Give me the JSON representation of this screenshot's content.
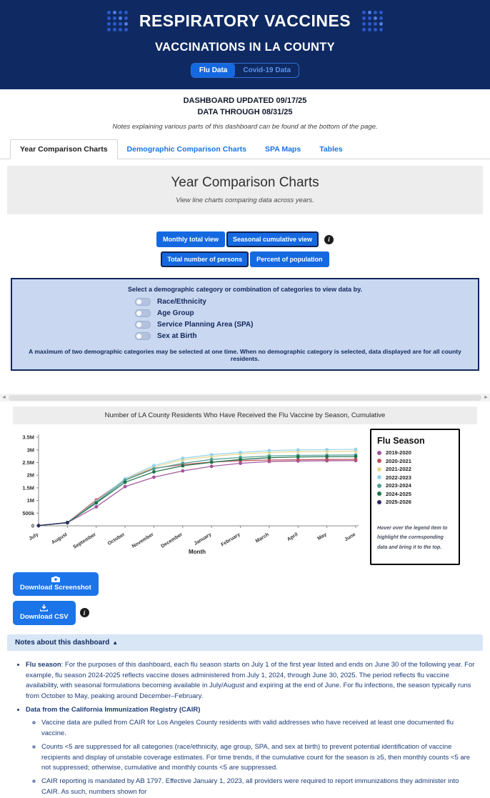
{
  "header": {
    "title": "RESPIRATORY VACCINES",
    "subtitle": "VACCINATIONS IN LA COUNTY",
    "toggle_flu": "Flu Data",
    "toggle_covid": "Covid-19 Data"
  },
  "meta": {
    "updated": "DASHBOARD UPDATED 09/17/25",
    "through": "DATA THROUGH 08/31/25",
    "note": "Notes explaining various parts of this dashboard can be found at the bottom of the page."
  },
  "tabs": [
    {
      "label": "Year Comparison Charts",
      "active": true
    },
    {
      "label": "Demographic Comparison Charts",
      "active": false
    },
    {
      "label": "SPA Maps",
      "active": false
    },
    {
      "label": "Tables",
      "active": false
    }
  ],
  "section": {
    "title": "Year Comparison Charts",
    "subtitle": "View line charts comparing data across years."
  },
  "view_toggles": {
    "row1": [
      {
        "label": "Monthly total view",
        "selected": false
      },
      {
        "label": "Seasonal cumulative view",
        "selected": true
      }
    ],
    "row2": [
      {
        "label": "Total number of persons",
        "selected": true
      },
      {
        "label": "Percent of population",
        "selected": false
      }
    ],
    "info_glyph": "i"
  },
  "demographic_panel": {
    "title": "Select a demographic category or combination of categories to view data by.",
    "options": [
      "Race/Ethnicity",
      "Age Group",
      "Service Planning Area (SPA)",
      "Sex at Birth"
    ],
    "note": "A maximum of two demographic categories may be selected at one time. When no demographic category is selected, data displayed are for all county residents."
  },
  "chart_data": {
    "type": "line",
    "title": "Number of LA County Residents Who Have Received the Flu Vaccine by Season, Cumulative",
    "xlabel": "Month",
    "x": [
      "July",
      "August",
      "September",
      "October",
      "November",
      "December",
      "January",
      "February",
      "March",
      "April",
      "May",
      "June"
    ],
    "ylim": [
      0,
      3500000
    ],
    "yticks": [
      "0",
      "500k",
      "1M",
      "1.5M",
      "2M",
      "2.5M",
      "3M",
      "3.5M"
    ],
    "grid": false,
    "legend_position": "right",
    "legend_title": "Flu Season",
    "legend_note": "Hover over the legend item to highlight the corresponding data and bring it to the top.",
    "series": [
      {
        "name": "2019-2020",
        "color": "#a2549c",
        "values": [
          10000,
          120000,
          750000,
          1550000,
          1920000,
          2170000,
          2350000,
          2470000,
          2540000,
          2560000,
          2570000,
          2575000
        ]
      },
      {
        "name": "2020-2021",
        "color": "#c04f5c",
        "values": [
          10000,
          130000,
          1020000,
          1830000,
          2270000,
          2420000,
          2520000,
          2570000,
          2600000,
          2610000,
          2620000,
          2625000
        ]
      },
      {
        "name": "2021-2022",
        "color": "#e6d78a",
        "values": [
          10000,
          120000,
          970000,
          1840000,
          2320000,
          2610000,
          2740000,
          2840000,
          2900000,
          2930000,
          2940000,
          2950000
        ]
      },
      {
        "name": "2022-2023",
        "color": "#96d3ec",
        "values": [
          10000,
          120000,
          960000,
          1860000,
          2380000,
          2670000,
          2810000,
          2900000,
          2970000,
          3000000,
          3010000,
          3020000
        ]
      },
      {
        "name": "2023-2024",
        "color": "#4e9e94",
        "values": [
          10000,
          120000,
          930000,
          1800000,
          2250000,
          2470000,
          2620000,
          2700000,
          2760000,
          2780000,
          2790000,
          2800000
        ]
      },
      {
        "name": "2024-2025",
        "color": "#1f7149",
        "values": [
          10000,
          120000,
          900000,
          1720000,
          2130000,
          2370000,
          2510000,
          2620000,
          2690000,
          2720000,
          2730000,
          2735000
        ]
      },
      {
        "name": "2025-2026",
        "color": "#312a69",
        "values": [
          10000,
          130000
        ]
      }
    ]
  },
  "downloads": {
    "screenshot": "Download Screenshot",
    "csv": "Download CSV"
  },
  "notes": {
    "header": "Notes about this dashboard",
    "collapse_glyph": "▲",
    "items": [
      {
        "lead": "Flu season",
        "text": ": For the purposes of this dashboard, each flu season starts on July 1 of the first year listed and ends on June 30 of the following year. For example, flu season 2024-2025 reflects vaccine doses administered from July 1, 2024, through June 30, 2025. The period reflects flu vaccine availability, with seasonal formulations becoming available in July/August and expiring at the end of June. For flu infections, the season typically runs from October to May, peaking around December–February.",
        "sub": []
      },
      {
        "lead": "Data from the California Immunization Registry (CAIR)",
        "text": "",
        "sub": [
          "Vaccine data are pulled from CAIR for Los Angeles County residents with valid addresses who have received at least one documented flu vaccine.",
          "Counts <5 are suppressed for all categories (race/ethnicity, age group, SPA, and sex at birth) to prevent potential identification of vaccine recipients and display of unstable coverage estimates. For time trends, if the cumulative count for the season is ≥5, then monthly counts <5 are not suppressed; otherwise, cumulative and monthly counts <5 are suppressed.",
          "CAIR reporting is mandated by AB 1797. Effective January 1, 2023, all providers were required to report immunizations they administer into CAIR. As such, numbers shown for"
        ]
      }
    ]
  },
  "colors": {
    "header_bg": "#0f2a63",
    "accent_blue": "#1569e0",
    "panel_bg": "#c9d8f0",
    "panel_border": "#12275e",
    "notes_bar_bg": "#d8e6f6",
    "notes_text": "#1d3c78"
  }
}
